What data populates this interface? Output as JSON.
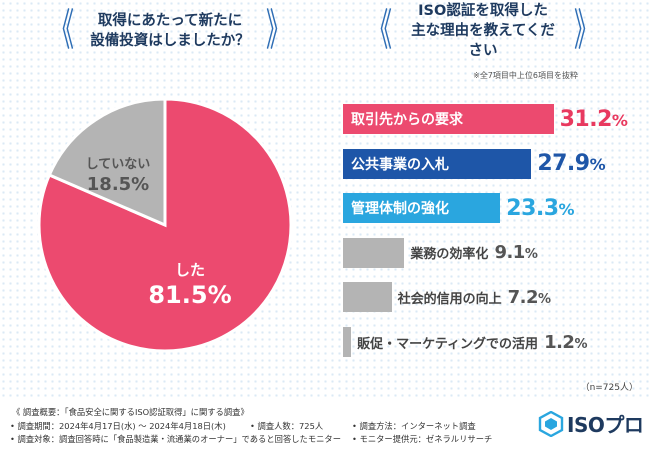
{
  "left_title": [
    "取得にあたって新たに",
    "設備投資はしましたか？"
  ],
  "right_title": [
    "ISO認証を取得した",
    "主な理由を教えてください"
  ],
  "note": "※全7項目中上位6項目を抜粋",
  "sample_size": "（n=725人）",
  "chart_data": [
    {
      "type": "pie",
      "title": "取得にあたって新たに設備投資はしましたか？",
      "slices": [
        {
          "label": "した",
          "value": 81.5,
          "display": "81.5%",
          "color": "#ec4a6f"
        },
        {
          "label": "していない",
          "value": 18.5,
          "display": "18.5%",
          "color": "#b4b4b4"
        }
      ]
    },
    {
      "type": "bar",
      "title": "ISO認証を取得した主な理由を教えてください",
      "orientation": "horizontal",
      "categories": [
        "取引先からの要求",
        "公共事業の入札",
        "管理体制の強化",
        "業務の効率化",
        "社会的信用の向上",
        "販促・マーケティングでの活用"
      ],
      "values": [
        31.2,
        27.9,
        23.3,
        9.1,
        7.2,
        1.2
      ],
      "value_labels": [
        "31.2",
        "27.9",
        "23.3",
        "9.1",
        "7.2",
        "1.2"
      ],
      "unit": "%",
      "colors": [
        "#ec4a6f",
        "#1e56a8",
        "#2aa6df",
        "#b4b4b4",
        "#b4b4b4",
        "#b4b4b4"
      ],
      "value_colors": [
        "#e8395f",
        "#1e56a8",
        "#2aa6df",
        "#555555",
        "#555555",
        "#555555"
      ]
    }
  ],
  "footer": {
    "outline": "《 調査概要：「食品安全に関するISO認証取得」に関する調査》",
    "period": "• 調査期間：2024年4月17日(水) ～ 2024年4月18日(木)",
    "respondents": "• 調査人数：725人",
    "method": "• 調査方法：インターネット調査",
    "target": "• 調査対象：調査回答時に「食品製造業・流通業のオーナー」であると回答したモニター",
    "provider": "• モニター提供元：ゼネラルリサーチ"
  },
  "logo": {
    "text": "ISOプロ",
    "color": "#2aa6df"
  }
}
